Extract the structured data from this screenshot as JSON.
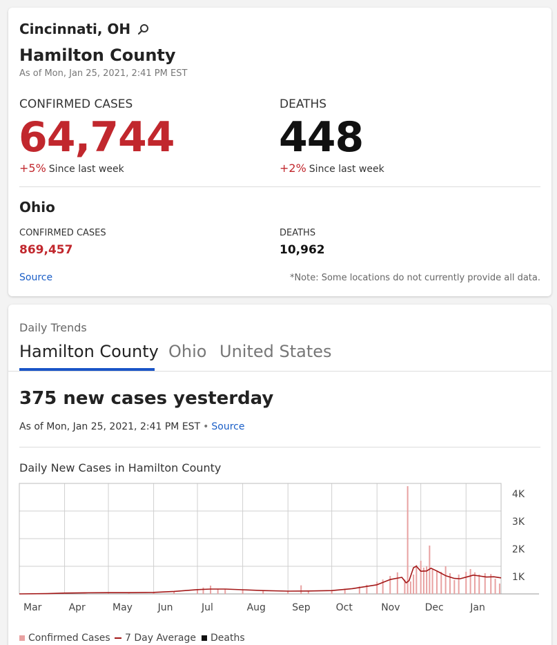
{
  "header": {
    "city": "Cincinnati, OH",
    "county": "Hamilton County",
    "as_of": "As of Mon, Jan 25, 2021, 2:41 PM EST"
  },
  "county_stats": {
    "confirmed_label": "CONFIRMED CASES",
    "confirmed_value": "64,744",
    "confirmed_change": "+5%",
    "deaths_label": "DEATHS",
    "deaths_value": "448",
    "deaths_change": "+2%",
    "since_label": "Since last week"
  },
  "state_stats": {
    "name": "Ohio",
    "confirmed_label": "CONFIRMED CASES",
    "confirmed_value": "869,457",
    "deaths_label": "DEATHS",
    "deaths_value": "10,962"
  },
  "footer": {
    "source_label": "Source",
    "note": "*Note: Some locations do not currently provide all data."
  },
  "trends": {
    "title": "Daily Trends",
    "tabs": [
      {
        "label": "Hamilton County",
        "active": true
      },
      {
        "label": "Ohio",
        "active": false
      },
      {
        "label": "United States",
        "active": false
      }
    ],
    "headline": "375 new cases yesterday",
    "as_of": "As of Mon, Jan 25, 2021, 2:41 PM EST",
    "separator": "•",
    "source_label": "Source",
    "chart_title": "Daily New Cases in Hamilton County"
  },
  "legend": {
    "cases": "Confirmed Cases",
    "avg": "7 Day Average",
    "deaths": "Deaths"
  },
  "colors": {
    "case_bar": "#e8a1a1",
    "average_line": "#a31717",
    "deaths": "#111111",
    "accent_red": "#c1272d",
    "link_blue": "#1a5ec7",
    "tab_underline": "#1a55c7"
  },
  "chart_data": {
    "type": "bar",
    "x_range": [
      "2020-03-01",
      "2021-01-25"
    ],
    "ylim": [
      0,
      4000
    ],
    "y_ticks": [
      1000,
      2000,
      3000,
      4000
    ],
    "y_tick_labels": [
      "1K",
      "2K",
      "3K",
      "4K"
    ],
    "x_tick_labels": [
      "Mar",
      "Apr",
      "May",
      "Jun",
      "Jul",
      "Aug",
      "Sep",
      "Oct",
      "Nov",
      "Dec",
      "Jan"
    ],
    "x_tick_dates": [
      "2020-03-01",
      "2020-04-01",
      "2020-05-01",
      "2020-06-01",
      "2020-07-01",
      "2020-08-01",
      "2020-09-01",
      "2020-10-01",
      "2020-11-01",
      "2020-12-01",
      "2021-01-01"
    ],
    "grid": true,
    "y_axis_side": "right",
    "legend_position": "bottom-left",
    "series": [
      {
        "name": "Confirmed Cases",
        "kind": "bar",
        "points": [
          [
            "2020-03-01",
            0
          ],
          [
            "2020-03-15",
            5
          ],
          [
            "2020-04-01",
            40
          ],
          [
            "2020-04-15",
            50
          ],
          [
            "2020-05-01",
            55
          ],
          [
            "2020-05-15",
            50
          ],
          [
            "2020-06-01",
            60
          ],
          [
            "2020-06-15",
            90
          ],
          [
            "2020-07-01",
            170
          ],
          [
            "2020-07-05",
            230
          ],
          [
            "2020-07-10",
            300
          ],
          [
            "2020-07-15",
            190
          ],
          [
            "2020-07-20",
            175
          ],
          [
            "2020-08-01",
            145
          ],
          [
            "2020-08-15",
            115
          ],
          [
            "2020-09-01",
            90
          ],
          [
            "2020-09-10",
            310
          ],
          [
            "2020-09-15",
            110
          ],
          [
            "2020-10-01",
            120
          ],
          [
            "2020-10-10",
            190
          ],
          [
            "2020-10-20",
            270
          ],
          [
            "2020-10-25",
            330
          ],
          [
            "2020-11-01",
            440
          ],
          [
            "2020-11-05",
            520
          ],
          [
            "2020-11-10",
            650
          ],
          [
            "2020-11-15",
            780
          ],
          [
            "2020-11-20",
            520
          ],
          [
            "2020-11-22",
            3900
          ],
          [
            "2020-11-24",
            450
          ],
          [
            "2020-11-26",
            700
          ],
          [
            "2020-11-28",
            1050
          ],
          [
            "2020-12-01",
            1200
          ],
          [
            "2020-12-03",
            950
          ],
          [
            "2020-12-05",
            1000
          ],
          [
            "2020-12-07",
            1750
          ],
          [
            "2020-12-09",
            900
          ],
          [
            "2020-12-12",
            850
          ],
          [
            "2020-12-15",
            800
          ],
          [
            "2020-12-18",
            1000
          ],
          [
            "2020-12-21",
            750
          ],
          [
            "2020-12-24",
            500
          ],
          [
            "2020-12-27",
            700
          ],
          [
            "2021-01-01",
            800
          ],
          [
            "2021-01-04",
            900
          ],
          [
            "2021-01-07",
            780
          ],
          [
            "2021-01-10",
            700
          ],
          [
            "2021-01-14",
            750
          ],
          [
            "2021-01-18",
            720
          ],
          [
            "2021-01-21",
            550
          ],
          [
            "2021-01-24",
            375
          ]
        ]
      },
      {
        "name": "7 Day Average",
        "kind": "line",
        "points": [
          [
            "2020-03-01",
            0
          ],
          [
            "2020-03-20",
            10
          ],
          [
            "2020-04-01",
            30
          ],
          [
            "2020-04-15",
            40
          ],
          [
            "2020-05-01",
            45
          ],
          [
            "2020-05-15",
            45
          ],
          [
            "2020-06-01",
            55
          ],
          [
            "2020-06-15",
            90
          ],
          [
            "2020-07-01",
            155
          ],
          [
            "2020-07-10",
            175
          ],
          [
            "2020-07-20",
            175
          ],
          [
            "2020-08-01",
            150
          ],
          [
            "2020-08-15",
            120
          ],
          [
            "2020-09-01",
            100
          ],
          [
            "2020-09-15",
            105
          ],
          [
            "2020-10-01",
            120
          ],
          [
            "2020-10-15",
            190
          ],
          [
            "2020-11-01",
            330
          ],
          [
            "2020-11-10",
            520
          ],
          [
            "2020-11-18",
            600
          ],
          [
            "2020-11-21",
            400
          ],
          [
            "2020-11-23",
            480
          ],
          [
            "2020-11-26",
            950
          ],
          [
            "2020-11-28",
            1000
          ],
          [
            "2020-12-01",
            820
          ],
          [
            "2020-12-05",
            830
          ],
          [
            "2020-12-08",
            930
          ],
          [
            "2020-12-12",
            830
          ],
          [
            "2020-12-18",
            660
          ],
          [
            "2020-12-24",
            560
          ],
          [
            "2020-12-28",
            550
          ],
          [
            "2021-01-02",
            620
          ],
          [
            "2021-01-06",
            680
          ],
          [
            "2021-01-10",
            650
          ],
          [
            "2021-01-15",
            610
          ],
          [
            "2021-01-20",
            620
          ],
          [
            "2021-01-25",
            580
          ]
        ]
      },
      {
        "name": "Deaths",
        "kind": "bar",
        "points": []
      }
    ]
  }
}
